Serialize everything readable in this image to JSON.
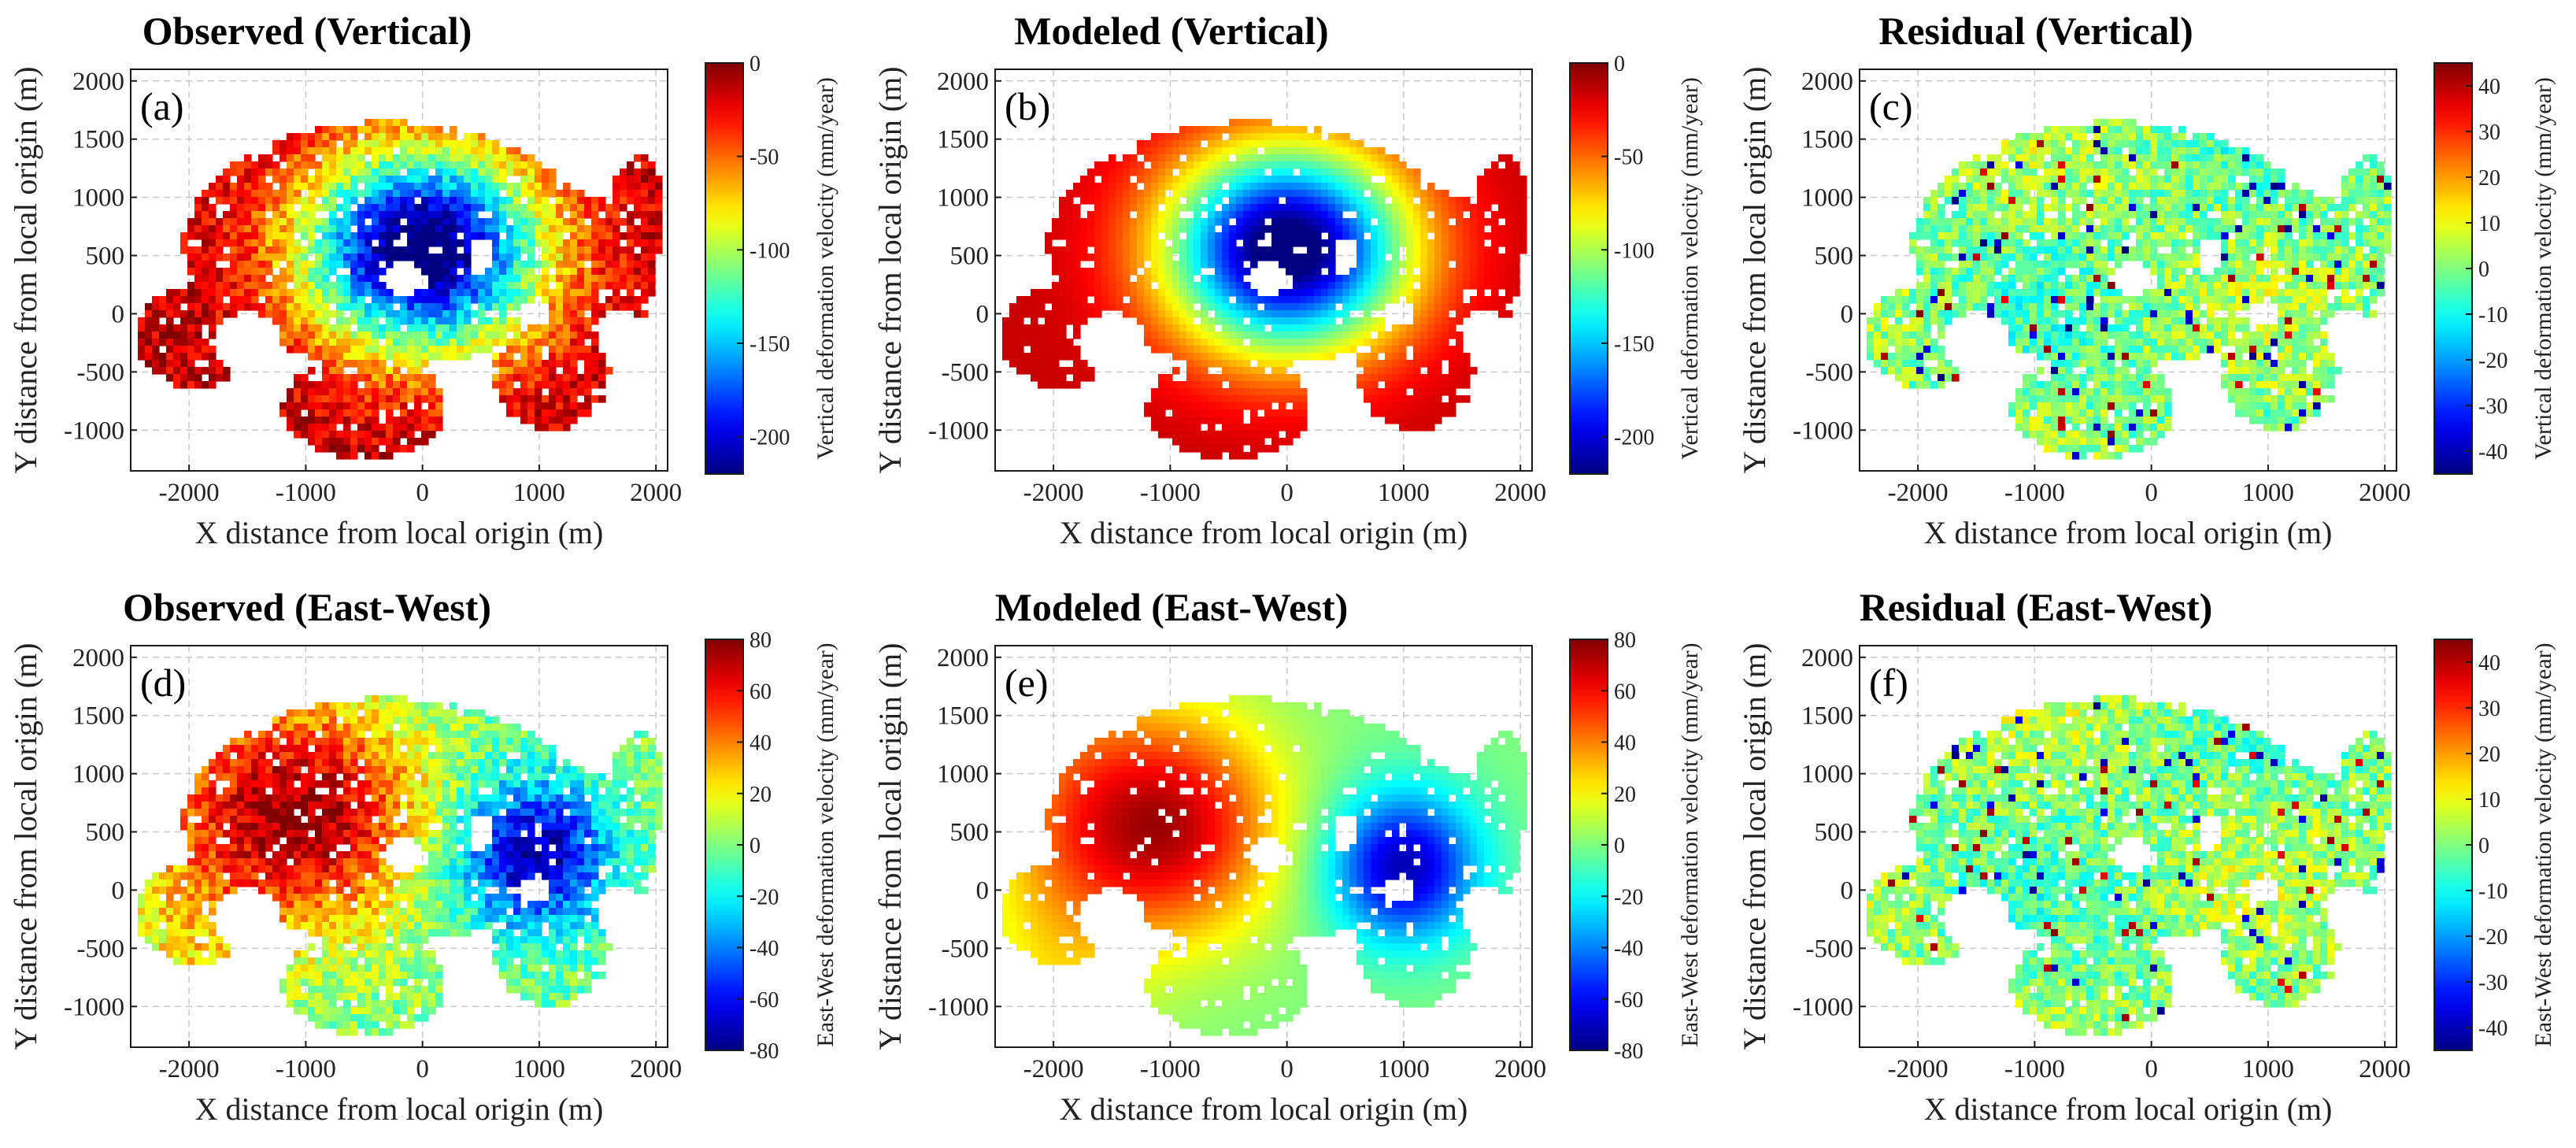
{
  "chart_data": [
    {
      "type": "heatmap",
      "panel_label": "(a)",
      "title": "Observed (Vertical)",
      "xlabel": "X distance from local origin (m)",
      "ylabel": "Y distance from local origin (m)",
      "x_ticks": [
        "-2000",
        "-1000",
        "0",
        "1000",
        "2000"
      ],
      "y_ticks": [
        "-1000",
        "-500",
        "0",
        "500",
        "1000",
        "1500",
        "2000"
      ],
      "xlim": [
        -2500,
        2100
      ],
      "ylim": [
        -1350,
        2100
      ],
      "grid": true,
      "colorbar": {
        "label": "Vertical deformation velocity (mm/year)",
        "range": [
          -220,
          0
        ],
        "ticks": [
          "0",
          "-50",
          "-100",
          "-150",
          "-200"
        ],
        "colormap": "jet"
      },
      "field": {
        "kind": "bowl",
        "center": [
          0,
          550
        ],
        "peak_value": -220,
        "extent": "subsidence bowl centred near (0, 550) m with values near -20 mm/year at the margins",
        "noise": "speckled"
      }
    },
    {
      "type": "heatmap",
      "panel_label": "(b)",
      "title": "Modeled (Vertical)",
      "xlabel": "X distance from local origin (m)",
      "ylabel": "Y distance from local origin (m)",
      "x_ticks": [
        "-2000",
        "-1000",
        "0",
        "1000",
        "2000"
      ],
      "y_ticks": [
        "-1000",
        "-500",
        "0",
        "500",
        "1000",
        "1500",
        "2000"
      ],
      "xlim": [
        -2500,
        2100
      ],
      "ylim": [
        -1350,
        2100
      ],
      "grid": true,
      "colorbar": {
        "label": "Vertical deformation velocity (mm/year)",
        "range": [
          -220,
          0
        ],
        "ticks": [
          "0",
          "-50",
          "-100",
          "-150",
          "-200"
        ],
        "colormap": "jet"
      },
      "field": {
        "kind": "bowl",
        "center": [
          0,
          550
        ],
        "peak_value": -220,
        "extent": "smooth subsidence bowl centred near (0, 550) m",
        "noise": "smooth"
      }
    },
    {
      "type": "heatmap",
      "panel_label": "(c)",
      "title": "Residual (Vertical)",
      "xlabel": "X distance from local origin (m)",
      "ylabel": "Y distance from local origin (m)",
      "x_ticks": [
        "-2000",
        "-1000",
        "0",
        "1000",
        "2000"
      ],
      "y_ticks": [
        "-1000",
        "-500",
        "0",
        "500",
        "1000",
        "1500",
        "2000"
      ],
      "xlim": [
        -2500,
        2100
      ],
      "ylim": [
        -1350,
        2100
      ],
      "grid": true,
      "colorbar": {
        "label": "Vertical deformation velocity (mm/year)",
        "range": [
          -45,
          45
        ],
        "ticks": [
          "40",
          "30",
          "20",
          "10",
          "0",
          "-10",
          "-20",
          "-30",
          "-40"
        ],
        "colormap": "jet"
      },
      "field": {
        "kind": "residual",
        "mean_value": 0,
        "extent": "mostly -10 to +10 mm/year with scattered extremes near +/-40",
        "noise": "speckled"
      }
    },
    {
      "type": "heatmap",
      "panel_label": "(d)",
      "title": "Observed (East-West)",
      "xlabel": "X distance from local origin (m)",
      "ylabel": "Y distance from local origin (m)",
      "x_ticks": [
        "-2000",
        "-1000",
        "0",
        "1000",
        "2000"
      ],
      "y_ticks": [
        "-1000",
        "-500",
        "0",
        "500",
        "1000",
        "1500",
        "2000"
      ],
      "xlim": [
        -2500,
        2100
      ],
      "ylim": [
        -1350,
        2100
      ],
      "grid": true,
      "colorbar": {
        "label": "East-West deformation velocity (mm/year)",
        "range": [
          -80,
          80
        ],
        "ticks": [
          "80",
          "60",
          "40",
          "20",
          "0",
          "-20",
          "-40",
          "-60",
          "-80"
        ],
        "colormap": "jet"
      },
      "field": {
        "kind": "dipole",
        "positive_center": [
          -1000,
          650
        ],
        "positive_peak": 75,
        "negative_center": [
          950,
          300
        ],
        "negative_peak": -75,
        "noise": "speckled"
      }
    },
    {
      "type": "heatmap",
      "panel_label": "(e)",
      "title": "Modeled (East-West)",
      "xlabel": "X distance from local origin (m)",
      "ylabel": "Y distance from local origin (m)",
      "x_ticks": [
        "-2000",
        "-1000",
        "0",
        "1000",
        "2000"
      ],
      "y_ticks": [
        "-1000",
        "-500",
        "0",
        "500",
        "1000",
        "1500",
        "2000"
      ],
      "xlim": [
        -2500,
        2100
      ],
      "ylim": [
        -1350,
        2100
      ],
      "grid": true,
      "colorbar": {
        "label": "East-West deformation velocity (mm/year)",
        "range": [
          -80,
          80
        ],
        "ticks": [
          "80",
          "60",
          "40",
          "20",
          "0",
          "-20",
          "-40",
          "-60",
          "-80"
        ],
        "colormap": "jet"
      },
      "field": {
        "kind": "dipole",
        "positive_center": [
          -1050,
          550
        ],
        "positive_peak": 72,
        "negative_center": [
          1000,
          200
        ],
        "negative_peak": -72,
        "noise": "smooth"
      }
    },
    {
      "type": "heatmap",
      "panel_label": "(f)",
      "title": "Residual (East-West)",
      "xlabel": "X distance from local origin (m)",
      "ylabel": "Y distance from local origin (m)",
      "x_ticks": [
        "-2000",
        "-1000",
        "0",
        "1000",
        "2000"
      ],
      "y_ticks": [
        "-1000",
        "-500",
        "0",
        "500",
        "1000",
        "1500",
        "2000"
      ],
      "xlim": [
        -2500,
        2100
      ],
      "ylim": [
        -1350,
        2100
      ],
      "grid": true,
      "colorbar": {
        "label": "East-West deformation velocity (mm/year)",
        "range": [
          -45,
          45
        ],
        "ticks": [
          "40",
          "30",
          "20",
          "10",
          "0",
          "-10",
          "-20",
          "-30",
          "-40"
        ],
        "colormap": "jet"
      },
      "field": {
        "kind": "residual",
        "mean_value": 0,
        "extent": "mostly -10 to +10 mm/year with scattered extremes near +/-40",
        "noise": "speckled"
      }
    }
  ],
  "coverage": {
    "description": "Irregular data footprint shared by all six panels",
    "blobs": [
      {
        "center": [
          -300,
          600
        ],
        "radii": [
          1750,
          1050
        ]
      },
      {
        "center": [
          1200,
          300
        ],
        "radii": [
          800,
          750
        ]
      },
      {
        "center": [
          -1950,
          -200
        ],
        "radii": [
          500,
          450
        ]
      },
      {
        "center": [
          -500,
          -800
        ],
        "radii": [
          700,
          450
        ]
      },
      {
        "center": [
          1850,
          850
        ],
        "radii": [
          250,
          500
        ]
      },
      {
        "center": [
          1100,
          -500
        ],
        "radii": [
          500,
          500
        ]
      }
    ],
    "holes": [
      {
        "center": [
          -1500,
          -250
        ],
        "radii": [
          300,
          260
        ]
      },
      {
        "center": [
          950,
          0
        ],
        "radii": [
          150,
          120
        ]
      },
      {
        "center": [
          -150,
          300
        ],
        "radii": [
          180,
          140
        ]
      },
      {
        "center": [
          500,
          500
        ],
        "radii": [
          110,
          160
        ]
      },
      {
        "center": [
          1700,
          -200
        ],
        "radii": [
          200,
          250
        ]
      }
    ]
  }
}
